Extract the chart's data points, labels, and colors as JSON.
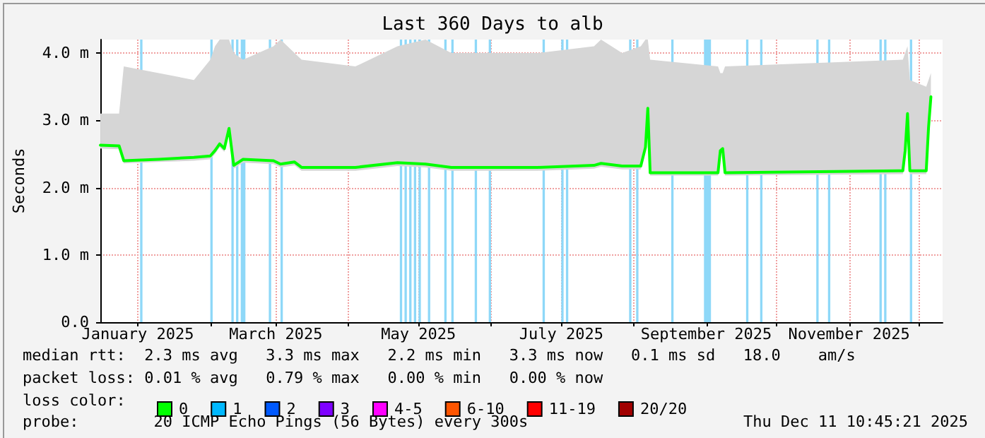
{
  "chart_data": {
    "type": "line",
    "title": "Last 360 Days to alb",
    "ylabel": "Seconds",
    "x": [
      "2024-12-16",
      "2024-12-24",
      "2024-12-26",
      "2025-01-10",
      "2025-01-25",
      "2025-02-01",
      "2025-02-03",
      "2025-02-05",
      "2025-02-07",
      "2025-02-09",
      "2025-02-11",
      "2025-02-15",
      "2025-02-28",
      "2025-03-03",
      "2025-03-09",
      "2025-03-12",
      "2025-04-04",
      "2025-04-22",
      "2025-05-04",
      "2025-05-15",
      "2025-06-21",
      "2025-07-15",
      "2025-07-18",
      "2025-07-27",
      "2025-08-04",
      "2025-08-06",
      "2025-08-07",
      "2025-08-08",
      "2025-09-06",
      "2025-09-07",
      "2025-09-08",
      "2025-09-09",
      "2025-11-24",
      "2025-11-25",
      "2025-11-26",
      "2025-11-27",
      "2025-12-04",
      "2025-12-05",
      "2025-12-06"
    ],
    "series": [
      {
        "name": "0",
        "color": "#00ff00",
        "values": [
          2.63,
          2.62,
          2.4,
          2.42,
          2.45,
          2.47,
          2.55,
          2.65,
          2.58,
          2.88,
          2.33,
          2.42,
          2.4,
          2.35,
          2.38,
          2.3,
          2.3,
          2.37,
          2.35,
          2.3,
          2.3,
          2.33,
          2.36,
          2.32,
          2.32,
          2.6,
          3.18,
          2.22,
          2.22,
          2.55,
          2.58,
          2.22,
          2.25,
          2.55,
          3.1,
          2.25,
          2.25,
          2.9,
          3.35
        ],
        "lower": [
          2.58,
          2.57,
          2.36,
          2.38,
          2.4,
          2.42,
          2.5,
          2.6,
          2.53,
          2.82,
          2.28,
          2.37,
          2.35,
          2.3,
          2.33,
          2.25,
          2.25,
          2.32,
          2.3,
          2.25,
          2.25,
          2.28,
          2.31,
          2.27,
          2.27,
          2.55,
          3.1,
          2.18,
          2.18,
          2.5,
          2.53,
          2.18,
          2.2,
          2.5,
          3.05,
          2.2,
          2.2,
          2.85,
          3.3
        ],
        "upper": [
          3.1,
          3.1,
          3.8,
          3.7,
          3.6,
          3.9,
          4.1,
          4.2,
          4.2,
          4.2,
          4.0,
          3.9,
          4.1,
          4.2,
          4.0,
          3.9,
          3.8,
          4.1,
          4.2,
          4.0,
          4.0,
          4.1,
          4.2,
          4.0,
          4.1,
          4.2,
          4.2,
          3.9,
          3.8,
          3.7,
          3.7,
          3.8,
          3.9,
          4.0,
          4.1,
          3.6,
          3.5,
          3.6,
          3.7
        ]
      },
      {
        "name": "1",
        "color": "#00b8ff",
        "values": [
          null,
          null,
          null,
          null,
          null,
          null,
          null,
          null,
          null,
          null,
          null,
          null,
          null,
          null,
          null,
          null,
          null,
          null,
          null,
          null,
          null,
          null,
          null,
          null,
          null,
          null,
          null,
          null,
          null,
          null,
          null,
          null,
          null,
          null,
          null,
          null,
          null,
          null,
          null
        ]
      },
      {
        "name": "2",
        "color": "#0059ff",
        "values": [
          null,
          null,
          null,
          null,
          null,
          null,
          null,
          null,
          null,
          null,
          null,
          null,
          null,
          null,
          null,
          null,
          null,
          null,
          null,
          null,
          null,
          null,
          null,
          null,
          null,
          null,
          null,
          null,
          null,
          null,
          null,
          null,
          null,
          null,
          null,
          null,
          null,
          null,
          null
        ]
      },
      {
        "name": "3",
        "color": "#7e00ff",
        "values": [
          null,
          null,
          null,
          null,
          null,
          null,
          null,
          null,
          null,
          null,
          null,
          null,
          null,
          null,
          null,
          null,
          null,
          null,
          null,
          null,
          null,
          null,
          null,
          null,
          null,
          null,
          null,
          null,
          null,
          null,
          null,
          null,
          null,
          null,
          null,
          null,
          null,
          null,
          null
        ]
      },
      {
        "name": "4-5",
        "color": "#ff00ff",
        "values": [
          null,
          null,
          null,
          null,
          null,
          null,
          null,
          null,
          null,
          null,
          null,
          null,
          null,
          null,
          null,
          null,
          null,
          null,
          null,
          null,
          null,
          null,
          null,
          null,
          null,
          null,
          null,
          null,
          null,
          null,
          null,
          null,
          null,
          null,
          null,
          null,
          null,
          null,
          null
        ]
      },
      {
        "name": "6-10",
        "color": "#ff5500",
        "values": [
          null,
          null,
          null,
          null,
          null,
          null,
          null,
          null,
          null,
          null,
          null,
          null,
          null,
          null,
          null,
          null,
          null,
          null,
          null,
          null,
          null,
          null,
          null,
          null,
          null,
          null,
          null,
          null,
          null,
          null,
          null,
          null,
          null,
          null,
          null,
          null,
          null,
          null,
          null
        ]
      },
      {
        "name": "11-19",
        "color": "#ff0000",
        "values": [
          null,
          null,
          null,
          null,
          null,
          null,
          null,
          null,
          null,
          null,
          null,
          null,
          null,
          null,
          null,
          null,
          null,
          null,
          null,
          null,
          null,
          null,
          null,
          null,
          null,
          null,
          null,
          null,
          null,
          null,
          null,
          null,
          null,
          null,
          null,
          null,
          null,
          null,
          null
        ]
      },
      {
        "name": "20/20",
        "color": "#a10000",
        "values": [
          null,
          null,
          null,
          null,
          null,
          null,
          null,
          null,
          null,
          null,
          null,
          null,
          null,
          null,
          null,
          null,
          null,
          null,
          null,
          null,
          null,
          null,
          null,
          null,
          null,
          null,
          null,
          null,
          null,
          null,
          null,
          null,
          null,
          null,
          null,
          null,
          null,
          null,
          null
        ]
      }
    ],
    "bands": [
      {
        "axis": "x",
        "from": "2025-01-02",
        "to": "2025-01-03",
        "color": "#8ed8f8"
      },
      {
        "axis": "x",
        "from": "2025-02-01",
        "to": "2025-02-02",
        "color": "#8ed8f8"
      },
      {
        "axis": "x",
        "from": "2025-02-10",
        "to": "2025-02-11",
        "color": "#8ed8f8"
      },
      {
        "axis": "x",
        "from": "2025-02-12",
        "to": "2025-02-13",
        "color": "#8ed8f8"
      },
      {
        "axis": "x",
        "from": "2025-02-14",
        "to": "2025-02-15",
        "color": "#8ed8f8"
      },
      {
        "axis": "x",
        "from": "2025-02-15",
        "to": "2025-02-16",
        "color": "#8ed8f8"
      },
      {
        "axis": "x",
        "from": "2025-02-26",
        "to": "2025-02-27",
        "color": "#8ed8f8"
      },
      {
        "axis": "x",
        "from": "2025-03-03",
        "to": "2025-03-04",
        "color": "#8ed8f8"
      },
      {
        "axis": "x",
        "from": "2025-04-23",
        "to": "2025-04-24",
        "color": "#8ed8f8"
      },
      {
        "axis": "x",
        "from": "2025-04-25",
        "to": "2025-04-26",
        "color": "#8ed8f8"
      },
      {
        "axis": "x",
        "from": "2025-04-27",
        "to": "2025-04-28",
        "color": "#8ed8f8"
      },
      {
        "axis": "x",
        "from": "2025-04-29",
        "to": "2025-04-30",
        "color": "#8ed8f8"
      },
      {
        "axis": "x",
        "from": "2025-05-01",
        "to": "2025-05-02",
        "color": "#8ed8f8"
      },
      {
        "axis": "x",
        "from": "2025-05-05",
        "to": "2025-05-06",
        "color": "#8ed8f8"
      },
      {
        "axis": "x",
        "from": "2025-05-12",
        "to": "2025-05-13",
        "color": "#8ed8f8"
      },
      {
        "axis": "x",
        "from": "2025-05-15",
        "to": "2025-05-16",
        "color": "#8ed8f8"
      },
      {
        "axis": "x",
        "from": "2025-05-25",
        "to": "2025-05-26",
        "color": "#8ed8f8"
      },
      {
        "axis": "x",
        "from": "2025-05-31",
        "to": "2025-06-01",
        "color": "#8ed8f8"
      },
      {
        "axis": "x",
        "from": "2025-06-23",
        "to": "2025-06-24",
        "color": "#8ed8f8"
      },
      {
        "axis": "x",
        "from": "2025-07-01",
        "to": "2025-07-02",
        "color": "#8ed8f8"
      },
      {
        "axis": "x",
        "from": "2025-07-03",
        "to": "2025-07-04",
        "color": "#8ed8f8"
      },
      {
        "axis": "x",
        "from": "2025-07-30",
        "to": "2025-07-31",
        "color": "#8ed8f8"
      },
      {
        "axis": "x",
        "from": "2025-08-02",
        "to": "2025-08-03",
        "color": "#8ed8f8"
      },
      {
        "axis": "x",
        "from": "2025-08-17",
        "to": "2025-08-18",
        "color": "#8ed8f8"
      },
      {
        "axis": "x",
        "from": "2025-08-31",
        "to": "2025-09-03",
        "color": "#8ed8f8"
      },
      {
        "axis": "x",
        "from": "2025-09-18",
        "to": "2025-09-19",
        "color": "#8ed8f8"
      },
      {
        "axis": "x",
        "from": "2025-09-24",
        "to": "2025-09-25",
        "color": "#8ed8f8"
      },
      {
        "axis": "x",
        "from": "2025-10-18",
        "to": "2025-10-19",
        "color": "#8ed8f8"
      },
      {
        "axis": "x",
        "from": "2025-10-23",
        "to": "2025-10-24",
        "color": "#8ed8f8"
      },
      {
        "axis": "x",
        "from": "2025-11-14",
        "to": "2025-11-15",
        "color": "#8ed8f8"
      },
      {
        "axis": "x",
        "from": "2025-11-16",
        "to": "2025-11-17",
        "color": "#8ed8f8"
      },
      {
        "axis": "x",
        "from": "2025-11-27",
        "to": "2025-11-28",
        "color": "#8ed8f8"
      }
    ],
    "xlim": [
      "2024-12-16",
      "2025-12-11"
    ],
    "xticks": [
      {
        "value": "2025-01-01",
        "label": "January 2025"
      },
      {
        "value": "2025-02-01",
        "label": null
      },
      {
        "value": "2025-03-01",
        "label": "March 2025"
      },
      {
        "value": "2025-04-01",
        "label": null
      },
      {
        "value": "2025-05-01",
        "label": "May 2025"
      },
      {
        "value": "2025-06-01",
        "label": null
      },
      {
        "value": "2025-07-01",
        "label": "July 2025"
      },
      {
        "value": "2025-08-01",
        "label": null
      },
      {
        "value": "2025-09-01",
        "label": "September 2025"
      },
      {
        "value": "2025-10-01",
        "label": null
      },
      {
        "value": "2025-11-01",
        "label": "November 2025"
      },
      {
        "value": "2025-12-01",
        "label": null
      }
    ],
    "ylim": [
      0,
      4.2
    ],
    "yticks": [
      {
        "value": 0,
        "label": "0.0"
      },
      {
        "value": 1,
        "label": "1.0 m"
      },
      {
        "value": 2,
        "label": "2.0 m"
      },
      {
        "value": 3,
        "label": "3.0 m"
      },
      {
        "value": 4,
        "label": "4.0 m"
      }
    ],
    "grid": true,
    "legend": "bottom",
    "marker": "none",
    "line_style": "solid",
    "annotations": [
      "median rtt:  2.3 ms avg   3.3 ms max   2.2 ms min   3.3 ms now   0.1 ms sd   18.0    am/s",
      "packet loss: 0.01 % avg   0.79 % max   0.00 % min   0.00 % now",
      "loss color:",
      "probe:        20 ICMP Echo Pings (56 Bytes) every 300s",
      "Thu Dec 11 10:45:21 2025"
    ]
  }
}
